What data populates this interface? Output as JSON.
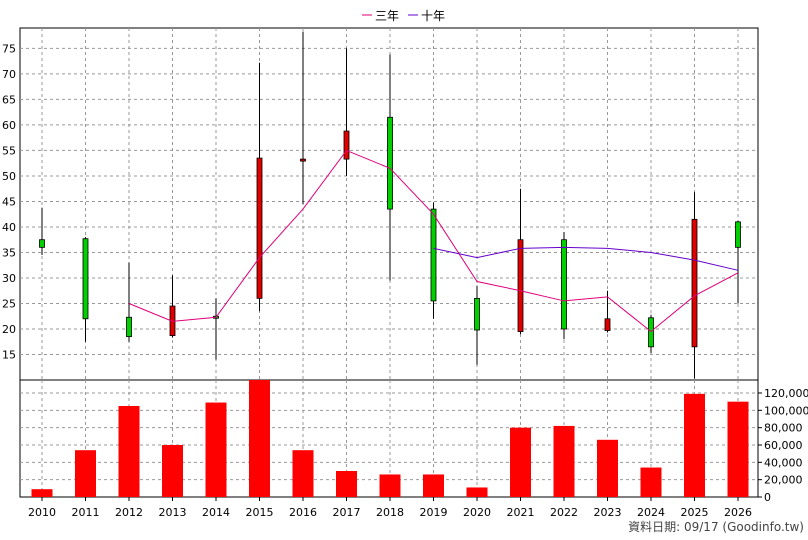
{
  "chart_data": {
    "type": "candlestick+bar",
    "legend": [
      {
        "name": "三年",
        "color": "#e0007a"
      },
      {
        "name": "十年",
        "color": "#6600cc"
      }
    ],
    "legend_position": "top-center",
    "grid": true,
    "categories": [
      "2010",
      "2011",
      "2012",
      "2013",
      "2014",
      "2015",
      "2016",
      "2017",
      "2018",
      "2019",
      "2020",
      "2021",
      "2022",
      "2023",
      "2024",
      "2025",
      "2026"
    ],
    "price_axis": {
      "ylim": [
        10,
        79
      ],
      "ticks": [
        "15",
        "20",
        "25",
        "30",
        "35",
        "40",
        "45",
        "50",
        "55",
        "60",
        "65",
        "70",
        "75"
      ],
      "tick_values": [
        15,
        20,
        25,
        30,
        35,
        40,
        45,
        50,
        55,
        60,
        65,
        70,
        75
      ]
    },
    "candles": [
      {
        "o": 36.0,
        "h": 43.8,
        "l": 34.5,
        "c": 37.5
      },
      {
        "o": 22.0,
        "h": 38.0,
        "l": 17.5,
        "c": 37.7
      },
      {
        "o": 18.5,
        "h": 33.0,
        "l": 17.5,
        "c": 22.3
      },
      {
        "o": 24.5,
        "h": 30.5,
        "l": 18.3,
        "c": 18.7
      },
      {
        "o": 22.3,
        "h": 26.0,
        "l": 14.0,
        "c": 22.5
      },
      {
        "o": 53.5,
        "h": 72.2,
        "l": 23.5,
        "c": 26.0
      },
      {
        "o": 53.3,
        "h": 78.3,
        "l": 44.5,
        "c": 53.0
      },
      {
        "o": 58.8,
        "h": 75.0,
        "l": 50.0,
        "c": 53.3
      },
      {
        "o": 43.5,
        "h": 73.8,
        "l": 29.5,
        "c": 61.5
      },
      {
        "o": 25.5,
        "h": 44.8,
        "l": 22.0,
        "c": 43.5
      },
      {
        "o": 19.8,
        "h": 28.5,
        "l": 13.0,
        "c": 26.0
      },
      {
        "o": 37.5,
        "h": 47.5,
        "l": 19.0,
        "c": 19.5
      },
      {
        "o": 20.0,
        "h": 39.0,
        "l": 18.0,
        "c": 37.5
      },
      {
        "o": 22.0,
        "h": 27.5,
        "l": 19.3,
        "c": 19.7
      },
      {
        "o": 16.5,
        "h": 22.8,
        "l": 15.3,
        "c": 22.2
      },
      {
        "o": 41.5,
        "h": 46.8,
        "l": 10.3,
        "c": 16.5
      },
      {
        "o": 36.0,
        "h": 41.2,
        "l": 25.0,
        "c": 41.0
      }
    ],
    "series": [
      {
        "name": "三年",
        "values": [
          null,
          null,
          25.0,
          21.5,
          22.3,
          34.0,
          43.5,
          55.0,
          51.5,
          42.5,
          29.3,
          27.5,
          25.5,
          26.3,
          19.5,
          26.5,
          31.0
        ]
      },
      {
        "name": "十年",
        "values": [
          null,
          null,
          null,
          null,
          null,
          null,
          null,
          null,
          null,
          35.8,
          34.0,
          35.8,
          36.0,
          35.8,
          35.0,
          33.5,
          31.5
        ]
      }
    ],
    "volume_axis": {
      "ylim": [
        0,
        135000
      ],
      "ticks": [
        "0",
        "20,000",
        "40,000",
        "60,000",
        "80,000",
        "100,000",
        "120,000"
      ],
      "tick_values": [
        0,
        20000,
        40000,
        60000,
        80000,
        100000,
        120000
      ]
    },
    "volume": [
      9000,
      54000,
      105000,
      60000,
      109000,
      136000,
      54000,
      30000,
      26000,
      26000,
      11000,
      80000,
      82000,
      66000,
      34000,
      119000,
      110000
    ],
    "footer": "資料日期: 09/17  (Goodinfo.tw)"
  },
  "colors": {
    "up": "#00d000",
    "down": "#e00000",
    "volume": "#ff0000",
    "grid": "#999999",
    "axis": "#000000"
  }
}
